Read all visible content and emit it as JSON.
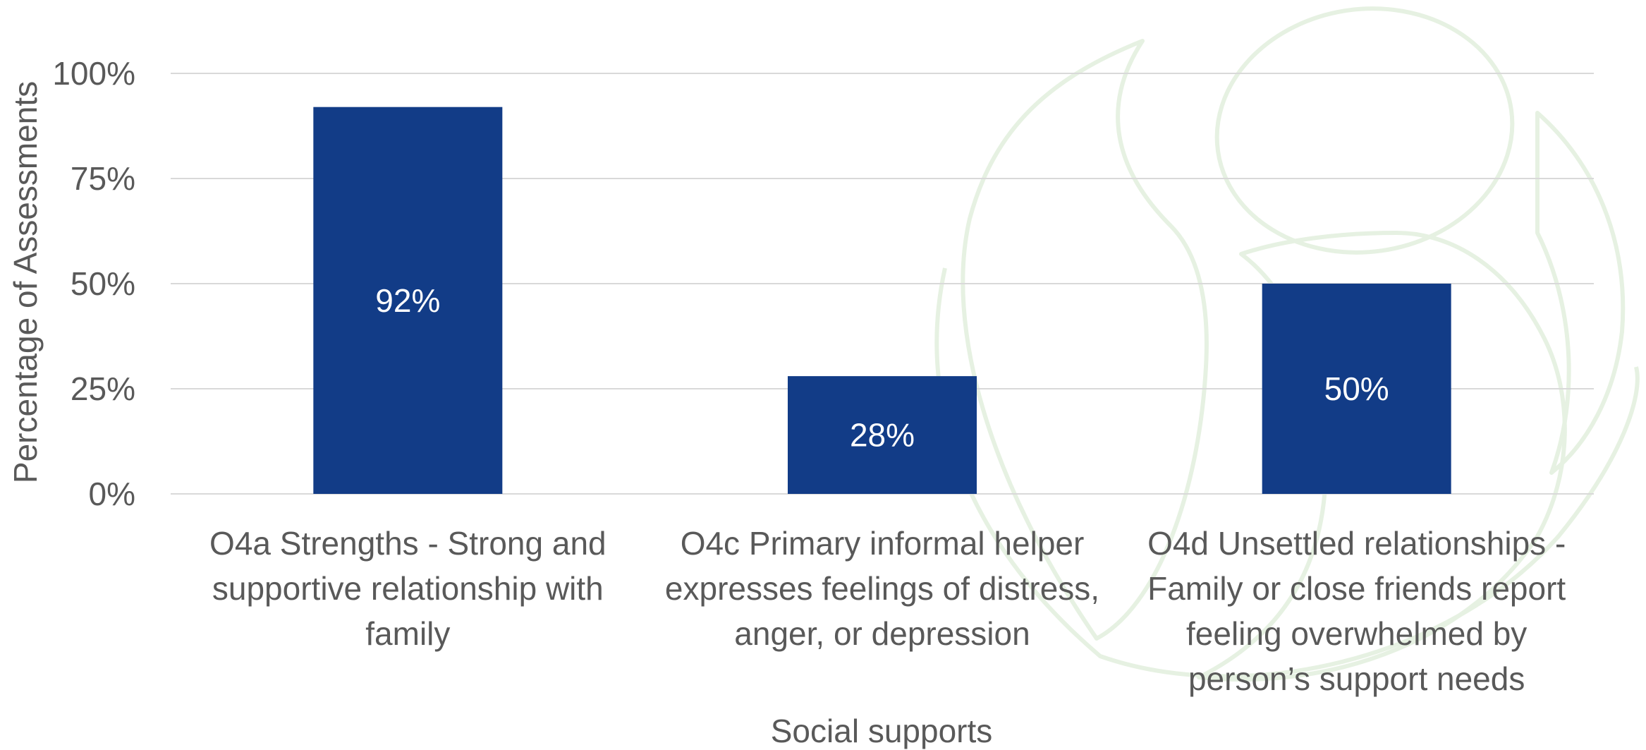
{
  "chart_data": {
    "type": "bar",
    "title": "",
    "xlabel": "Social supports",
    "ylabel": "Percentage of Assessments",
    "ylim": [
      0,
      100
    ],
    "yticks": [
      "0%",
      "25%",
      "50%",
      "75%",
      "100%"
    ],
    "ytick_values": [
      0,
      25,
      50,
      75,
      100
    ],
    "grid": true,
    "bar_color": "#123c87",
    "categories": [
      [
        "O4a Strengths - Strong and",
        "supportive relationship with",
        "family"
      ],
      [
        "O4c Primary informal helper",
        "expresses feelings of distress,",
        "anger, or depression"
      ],
      [
        "O4d Unsettled relationships -",
        "Family or close friends report",
        "feeling overwhelmed by",
        "person’s support needs"
      ]
    ],
    "values": [
      92,
      28,
      50
    ],
    "data_labels": [
      "92%",
      "28%",
      "50%"
    ]
  }
}
